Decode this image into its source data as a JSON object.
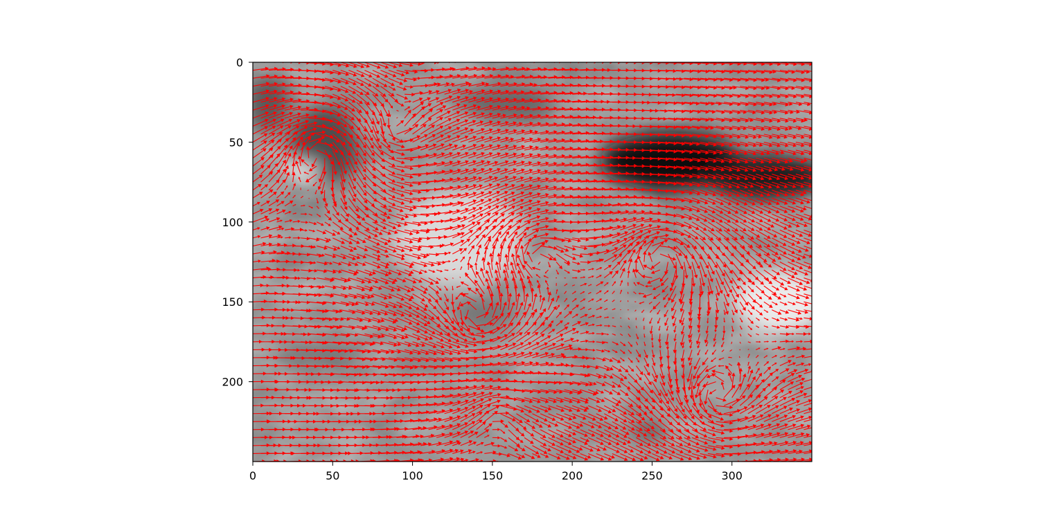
{
  "chart_data": {
    "type": "quiver",
    "title": "",
    "xlabel": "",
    "ylabel": "",
    "xlim": [
      0,
      350
    ],
    "ylim": [
      250,
      0
    ],
    "y_inverted": true,
    "x_ticks": [
      0,
      50,
      100,
      150,
      200,
      250,
      300
    ],
    "y_ticks": [
      0,
      50,
      100,
      150,
      200
    ],
    "grid": false,
    "background": {
      "type": "grayscale-image",
      "description_values": "intensity field; dark regions near (260,65), (40,50), (145,155), (250,230)",
      "dark_spots": [
        {
          "x": 262,
          "y": 62,
          "rx": 45,
          "ry": 18,
          "level": 0.06
        },
        {
          "x": 320,
          "y": 72,
          "rx": 40,
          "ry": 14,
          "level": 0.12
        },
        {
          "x": 45,
          "y": 52,
          "rx": 22,
          "ry": 25,
          "level": 0.3
        },
        {
          "x": 10,
          "y": 25,
          "rx": 14,
          "ry": 18,
          "level": 0.35
        },
        {
          "x": 160,
          "y": 25,
          "rx": 30,
          "ry": 12,
          "level": 0.4
        },
        {
          "x": 145,
          "y": 158,
          "rx": 22,
          "ry": 10,
          "level": 0.45
        },
        {
          "x": 40,
          "y": 183,
          "rx": 25,
          "ry": 8,
          "level": 0.45
        },
        {
          "x": 100,
          "y": 185,
          "rx": 18,
          "ry": 7,
          "level": 0.5
        },
        {
          "x": 250,
          "y": 230,
          "rx": 8,
          "ry": 7,
          "level": 0.3
        },
        {
          "x": 195,
          "y": 210,
          "rx": 22,
          "ry": 10,
          "level": 0.55
        },
        {
          "x": 150,
          "y": 245,
          "rx": 60,
          "ry": 6,
          "level": 0.6
        }
      ],
      "light_spots": [
        {
          "x": 30,
          "y": 68,
          "rx": 12,
          "ry": 5,
          "level": 0.98
        },
        {
          "x": 330,
          "y": 150,
          "rx": 30,
          "ry": 20,
          "level": 0.92
        },
        {
          "x": 130,
          "y": 110,
          "rx": 40,
          "ry": 30,
          "level": 0.85
        }
      ]
    },
    "arrow_color": "#ff0000",
    "grid_spacing": 5,
    "vortices": [
      {
        "x": 40,
        "y": 55,
        "strength": 14
      },
      {
        "x": 85,
        "y": 45,
        "strength": -10
      },
      {
        "x": 175,
        "y": 120,
        "strength": 9
      },
      {
        "x": 140,
        "y": 160,
        "strength": -12
      },
      {
        "x": 255,
        "y": 120,
        "strength": 11
      },
      {
        "x": 290,
        "y": 210,
        "strength": -10
      },
      {
        "x": 150,
        "y": 220,
        "strength": 6
      }
    ],
    "background_flow": {
      "u": 14,
      "v": 0
    }
  }
}
